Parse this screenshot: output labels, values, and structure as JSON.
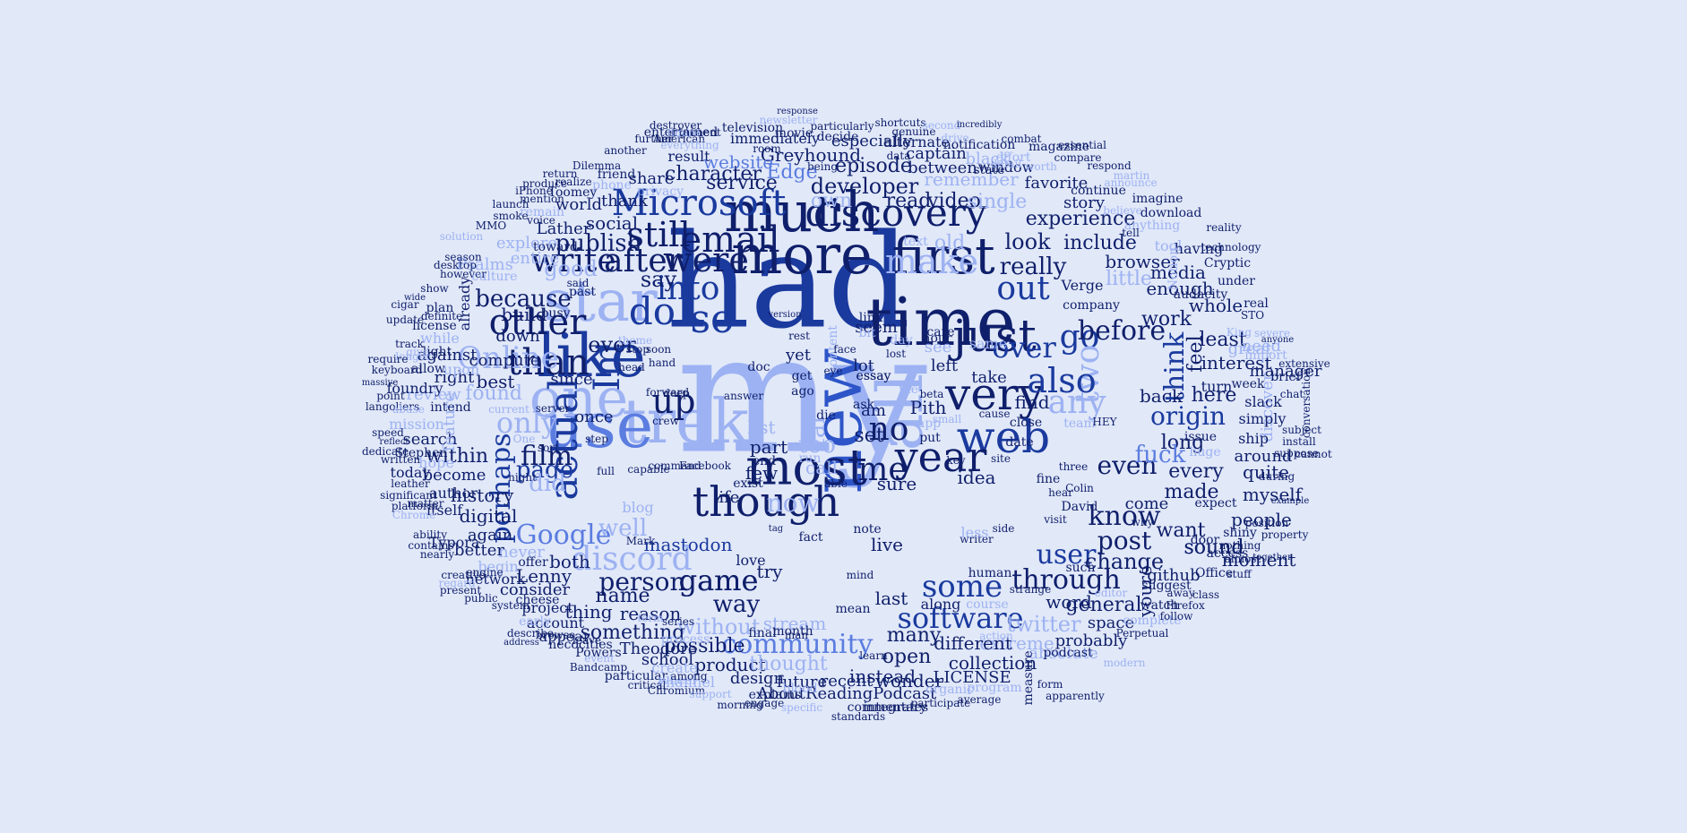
{
  "palette": [
    "#0f1f6b",
    "#1a3a9e",
    "#2d55c8",
    "#5b7de0",
    "#9db2f2",
    "#b8c8f5"
  ],
  "words": [
    {
      "text": "my"
    },
    {
      "text": "had"
    },
    {
      "text": "new"
    },
    {
      "text": "all"
    },
    {
      "text": "time"
    },
    {
      "text": "trek"
    },
    {
      "text": "use"
    },
    {
      "text": "much"
    },
    {
      "text": "more"
    },
    {
      "text": "like"
    },
    {
      "text": "one"
    },
    {
      "text": "star"
    },
    {
      "text": "first"
    },
    {
      "text": "most"
    },
    {
      "text": "very"
    },
    {
      "text": "web"
    },
    {
      "text": "just"
    },
    {
      "text": "year"
    },
    {
      "text": "though"
    },
    {
      "text": "discovery"
    },
    {
      "text": "Microsoft"
    },
    {
      "text": "email"
    },
    {
      "text": "still"
    },
    {
      "text": "were"
    },
    {
      "text": "make"
    },
    {
      "text": "do"
    },
    {
      "text": "so"
    },
    {
      "text": "than"
    },
    {
      "text": "other"
    },
    {
      "text": "Im"
    },
    {
      "text": "actual"
    },
    {
      "text": "up"
    },
    {
      "text": "into"
    },
    {
      "text": "after"
    },
    {
      "text": "write"
    },
    {
      "text": "out"
    },
    {
      "text": "over"
    },
    {
      "text": "go"
    },
    {
      "text": "two"
    },
    {
      "text": "also"
    },
    {
      "text": "any"
    },
    {
      "text": "me"
    },
    {
      "text": "no"
    },
    {
      "text": "some"
    },
    {
      "text": "software"
    },
    {
      "text": "game"
    },
    {
      "text": "discord"
    },
    {
      "text": "Online"
    },
    {
      "text": "film"
    },
    {
      "text": "only"
    },
    {
      "text": "Google"
    },
    {
      "text": "community"
    },
    {
      "text": "user"
    },
    {
      "text": "know"
    },
    {
      "text": "even"
    },
    {
      "text": "origin"
    },
    {
      "text": "before"
    },
    {
      "text": "think"
    },
    {
      "text": "through"
    },
    {
      "text": "post"
    },
    {
      "text": "now"
    },
    {
      "text": "far"
    },
    {
      "text": "too"
    },
    {
      "text": "way"
    },
    {
      "text": "person"
    },
    {
      "text": "page"
    },
    {
      "text": "did"
    },
    {
      "text": "well"
    },
    {
      "text": "perhaps"
    },
    {
      "text": "because"
    },
    {
      "text": "say"
    },
    {
      "text": "publish"
    },
    {
      "text": "good"
    },
    {
      "text": "ever"
    },
    {
      "text": "really"
    },
    {
      "text": "look"
    },
    {
      "text": "experience"
    },
    {
      "text": "developer"
    },
    {
      "text": "service"
    },
    {
      "text": "character"
    },
    {
      "text": "episode"
    },
    {
      "text": "Greyhound"
    },
    {
      "text": "Edge"
    },
    {
      "text": "website"
    },
    {
      "text": "own"
    },
    {
      "text": "old"
    },
    {
      "text": "read"
    },
    {
      "text": "video"
    },
    {
      "text": "single"
    },
    {
      "text": "remember"
    },
    {
      "text": "black"
    },
    {
      "text": "captain"
    },
    {
      "text": "between"
    },
    {
      "text": "favorite"
    },
    {
      "text": "story"
    },
    {
      "text": "include"
    },
    {
      "text": "browser"
    },
    {
      "text": "little"
    },
    {
      "text": "enough"
    },
    {
      "text": "media"
    },
    {
      "text": "whole"
    },
    {
      "text": "work"
    },
    {
      "text": "least"
    },
    {
      "text": "feel"
    },
    {
      "text": "interest"
    },
    {
      "text": "manager"
    },
    {
      "text": "here"
    },
    {
      "text": "back"
    },
    {
      "text": "long"
    },
    {
      "text": "every"
    },
    {
      "text": "made"
    },
    {
      "text": "myself"
    },
    {
      "text": "people"
    },
    {
      "text": "quite"
    },
    {
      "text": "around"
    },
    {
      "text": "fuck"
    },
    {
      "text": "discover"
    },
    {
      "text": "great"
    },
    {
      "text": "need"
    },
    {
      "text": "change"
    },
    {
      "text": "want"
    },
    {
      "text": "sound"
    },
    {
      "text": "moment"
    },
    {
      "text": "github"
    },
    {
      "text": "youre"
    },
    {
      "text": "general"
    },
    {
      "text": "word"
    },
    {
      "text": "space"
    },
    {
      "text": "twitter"
    },
    {
      "text": "probably"
    },
    {
      "text": "extreme"
    },
    {
      "text": "absolute"
    },
    {
      "text": "collection"
    },
    {
      "text": "different"
    },
    {
      "text": "many"
    },
    {
      "text": "open"
    },
    {
      "text": "instead"
    },
    {
      "text": "wonder"
    },
    {
      "text": "LICENSE"
    },
    {
      "text": "AboutReadingPodcast"
    },
    {
      "text": "recent"
    },
    {
      "text": "design"
    },
    {
      "text": "future"
    },
    {
      "text": "product"
    },
    {
      "text": "possible"
    },
    {
      "text": "thought"
    },
    {
      "text": "stream"
    },
    {
      "text": "without"
    },
    {
      "text": "something"
    },
    {
      "text": "reason"
    },
    {
      "text": "name"
    },
    {
      "text": "thing"
    },
    {
      "text": "consider"
    },
    {
      "text": "Lenny"
    },
    {
      "text": "both"
    },
    {
      "text": "never"
    },
    {
      "text": "mastodon"
    },
    {
      "text": "history"
    },
    {
      "text": "digital"
    },
    {
      "text": "within"
    },
    {
      "text": "become"
    },
    {
      "text": "search"
    },
    {
      "text": "found"
    },
    {
      "text": "review"
    },
    {
      "text": "right"
    },
    {
      "text": "best"
    },
    {
      "text": "compute"
    },
    {
      "text": "build"
    },
    {
      "text": "down"
    },
    {
      "text": "entire"
    },
    {
      "text": "explore"
    },
    {
      "text": "social"
    },
    {
      "text": "thank"
    },
    {
      "text": "share"
    },
    {
      "text": "phone"
    },
    {
      "text": "world"
    },
    {
      "text": "Lather"
    },
    {
      "text": "since"
    },
    {
      "text": "once"
    },
    {
      "text": "Pith"
    },
    {
      "text": "set"
    },
    {
      "text": "part"
    },
    {
      "text": "list"
    },
    {
      "text": "call"
    },
    {
      "text": "few"
    },
    {
      "text": "sure"
    },
    {
      "text": "live"
    },
    {
      "text": "last"
    },
    {
      "text": "try"
    },
    {
      "text": "idea"
    },
    {
      "text": "find"
    },
    {
      "text": "take"
    },
    {
      "text": "left"
    },
    {
      "text": "see"
    },
    {
      "text": "seem"
    },
    {
      "text": "yet"
    },
    {
      "text": "lot"
    },
    {
      "text": "am"
    },
    {
      "text": "life"
    },
    {
      "text": "love"
    },
    {
      "text": "Theodore"
    },
    {
      "text": "school"
    },
    {
      "text": "create"
    },
    {
      "text": "channel"
    },
    {
      "text": "Psalms"
    },
    {
      "text": "against"
    },
    {
      "text": "upon"
    },
    {
      "text": "while"
    },
    {
      "text": "already"
    },
    {
      "text": "feature"
    },
    {
      "text": "mission"
    },
    {
      "text": "author"
    },
    {
      "text": "hope"
    },
    {
      "text": "again"
    },
    {
      "text": "better"
    },
    {
      "text": "network"
    },
    {
      "text": "project"
    },
    {
      "text": "account"
    },
    {
      "text": "appear"
    },
    {
      "text": "begin"
    },
    {
      "text": "Typora"
    },
    {
      "text": "itself"
    },
    {
      "text": "today"
    },
    {
      "text": "foundry"
    },
    {
      "text": "allow"
    },
    {
      "text": "license"
    },
    {
      "text": "intend"
    },
    {
      "text": "blog"
    },
    {
      "text": "Stephen"
    },
    {
      "text": "Verge"
    },
    {
      "text": "audacity"
    },
    {
      "text": "slack"
    },
    {
      "text": "ship"
    },
    {
      "text": "simply"
    },
    {
      "text": "cannot"
    },
    {
      "text": "issue"
    },
    {
      "text": "huge"
    },
    {
      "text": "turn"
    },
    {
      "text": "import"
    },
    {
      "text": "David"
    },
    {
      "text": "Office"
    },
    {
      "text": "expect"
    },
    {
      "text": "shiny"
    },
    {
      "text": "door"
    },
    {
      "text": "suggest"
    },
    {
      "text": "watch"
    },
    {
      "text": "complete"
    },
    {
      "text": "podcast"
    },
    {
      "text": "Perpetual"
    },
    {
      "text": "explains"
    },
    {
      "text": "engage"
    },
    {
      "text": "commentary"
    },
    {
      "text": "integrates"
    },
    {
      "text": "participate"
    },
    {
      "text": "standards"
    },
    {
      "text": "month"
    },
    {
      "text": "particular"
    },
    {
      "text": "necocities"
    },
    {
      "text": "Powers"
    },
    {
      "text": "browse"
    },
    {
      "text": "Bandcamp"
    },
    {
      "text": "critical"
    },
    {
      "text": "Chromium"
    },
    {
      "text": "mean"
    },
    {
      "text": "human"
    },
    {
      "text": "course"
    },
    {
      "text": "program"
    },
    {
      "text": "organic"
    },
    {
      "text": "television"
    },
    {
      "text": "immediately"
    },
    {
      "text": "especially"
    },
    {
      "text": "alternate"
    },
    {
      "text": "notification"
    },
    {
      "text": "particularly"
    },
    {
      "text": "entertained"
    },
    {
      "text": "result"
    },
    {
      "text": "movie"
    },
    {
      "text": "destroyer"
    },
    {
      "text": "argument"
    },
    {
      "text": "American"
    },
    {
      "text": "Dilemma"
    },
    {
      "text": "Toomey"
    },
    {
      "text": "friend"
    },
    {
      "text": "produce"
    },
    {
      "text": "realize"
    },
    {
      "text": "mention"
    },
    {
      "text": "remain"
    },
    {
      "text": "toward"
    },
    {
      "text": "said"
    },
    {
      "text": "past"
    },
    {
      "text": "busy"
    },
    {
      "text": "smoke"
    },
    {
      "text": "launch"
    },
    {
      "text": "iPhone"
    },
    {
      "text": "return"
    },
    {
      "text": "window"
    },
    {
      "text": "continue"
    },
    {
      "text": "compare"
    },
    {
      "text": "magazine"
    },
    {
      "text": "effort"
    },
    {
      "text": "respond"
    },
    {
      "text": "martin"
    },
    {
      "text": "imagine"
    },
    {
      "text": "download"
    },
    {
      "text": "anything"
    },
    {
      "text": "tool"
    },
    {
      "text": "having"
    },
    {
      "text": "Cryptic"
    },
    {
      "text": "technology"
    },
    {
      "text": "company"
    },
    {
      "text": "Notion"
    },
    {
      "text": "under"
    },
    {
      "text": "real"
    },
    {
      "text": "week"
    },
    {
      "text": "brief"
    },
    {
      "text": "extensive"
    },
    {
      "text": "install"
    },
    {
      "text": "subject"
    },
    {
      "text": "suppose"
    },
    {
      "text": "conversation"
    },
    {
      "text": "access"
    },
    {
      "text": "stuff"
    },
    {
      "text": "class"
    },
    {
      "text": "away"
    },
    {
      "text": "follow"
    },
    {
      "text": "Firefox"
    },
    {
      "text": "essay"
    },
    {
      "text": "ask"
    },
    {
      "text": "close"
    },
    {
      "text": "date"
    },
    {
      "text": "team"
    },
    {
      "text": "three"
    },
    {
      "text": "HEY"
    },
    {
      "text": "position"
    },
    {
      "text": "property"
    },
    {
      "text": "nothing"
    },
    {
      "text": "app"
    },
    {
      "text": "put"
    },
    {
      "text": "care"
    },
    {
      "text": "hour"
    },
    {
      "text": "file"
    },
    {
      "text": "day"
    },
    {
      "text": "content"
    },
    {
      "text": "link"
    },
    {
      "text": "bit"
    },
    {
      "text": "run"
    },
    {
      "text": "get"
    },
    {
      "text": "ago"
    },
    {
      "text": "die"
    },
    {
      "text": "fact"
    },
    {
      "text": "note"
    },
    {
      "text": "end"
    },
    {
      "text": "exist"
    },
    {
      "text": "doc"
    },
    {
      "text": "Mark"
    },
    {
      "text": "full"
    },
    {
      "text": "One"
    },
    {
      "text": "server"
    },
    {
      "text": "current"
    },
    {
      "text": "sort"
    },
    {
      "text": "point"
    },
    {
      "text": "keyboard"
    },
    {
      "text": "massive"
    },
    {
      "text": "reflect"
    },
    {
      "text": "speed"
    },
    {
      "text": "written"
    },
    {
      "text": "nearly"
    },
    {
      "text": "contains"
    },
    {
      "text": "ability"
    },
    {
      "text": "platform"
    },
    {
      "text": "leather"
    },
    {
      "text": "significant"
    },
    {
      "text": "dedicate"
    },
    {
      "text": "matter"
    },
    {
      "text": "Chrome"
    },
    {
      "text": "desktop"
    },
    {
      "text": "cigar"
    },
    {
      "text": "update"
    },
    {
      "text": "wide"
    },
    {
      "text": "plan"
    },
    {
      "text": "definite"
    },
    {
      "text": "however"
    },
    {
      "text": "show"
    },
    {
      "text": "light"
    },
    {
      "text": "longer"
    },
    {
      "text": "give"
    },
    {
      "text": "track"
    },
    {
      "text": "require"
    },
    {
      "text": "langoliers"
    },
    {
      "text": "engine"
    },
    {
      "text": "system"
    },
    {
      "text": "cheese"
    },
    {
      "text": "public"
    },
    {
      "text": "present"
    },
    {
      "text": "creative"
    },
    {
      "text": "regard"
    },
    {
      "text": "early"
    },
    {
      "text": "describe"
    },
    {
      "text": "series"
    },
    {
      "text": "offer"
    },
    {
      "text": "leave"
    },
    {
      "text": "final"
    },
    {
      "text": "event"
    },
    {
      "text": "wheel"
    },
    {
      "text": "morning"
    },
    {
      "text": "average"
    },
    {
      "text": "specific"
    },
    {
      "text": "among"
    },
    {
      "text": "support"
    },
    {
      "text": "process"
    },
    {
      "text": "learn"
    },
    {
      "text": "measure"
    },
    {
      "text": "form"
    },
    {
      "text": "apparently"
    },
    {
      "text": "modern"
    },
    {
      "text": "response"
    },
    {
      "text": "genuine"
    },
    {
      "text": "shortcuts"
    },
    {
      "text": "second"
    },
    {
      "text": "state"
    },
    {
      "text": "combat"
    },
    {
      "text": "essential"
    },
    {
      "text": "incredibly"
    },
    {
      "text": "drive"
    },
    {
      "text": "data"
    },
    {
      "text": "being"
    },
    {
      "text": "decide"
    },
    {
      "text": "another"
    },
    {
      "text": "further"
    },
    {
      "text": "everything"
    },
    {
      "text": "newsletter"
    },
    {
      "text": "season"
    },
    {
      "text": "MMO"
    },
    {
      "text": "culture"
    },
    {
      "text": "privacy"
    },
    {
      "text": "abuse"
    },
    {
      "text": "King"
    },
    {
      "text": "during"
    },
    {
      "text": "anyone"
    },
    {
      "text": "chat"
    },
    {
      "text": "STO"
    },
    {
      "text": "voice"
    },
    {
      "text": "room"
    },
    {
      "text": "worth"
    },
    {
      "text": "believe"
    },
    {
      "text": "reality"
    },
    {
      "text": "detail"
    },
    {
      "text": "announce"
    },
    {
      "text": "solution"
    },
    {
      "text": "man"
    },
    {
      "text": "essay"
    },
    {
      "text": "answer"
    },
    {
      "text": "version"
    },
    {
      "text": "deep"
    },
    {
      "text": "stop"
    },
    {
      "text": "soon"
    },
    {
      "text": "head"
    },
    {
      "text": "step"
    },
    {
      "text": "capable"
    },
    {
      "text": "command"
    },
    {
      "text": "Facebook"
    },
    {
      "text": "face"
    },
    {
      "text": "eye"
    },
    {
      "text": "able"
    },
    {
      "text": "address"
    },
    {
      "text": "night"
    },
    {
      "text": "crew"
    },
    {
      "text": "theme"
    },
    {
      "text": "tag"
    },
    {
      "text": "forward"
    },
    {
      "text": "term"
    },
    {
      "text": "site"
    },
    {
      "text": "cause"
    },
    {
      "text": "key"
    },
    {
      "text": "beta"
    },
    {
      "text": "small"
    },
    {
      "text": "almost"
    },
    {
      "text": "together"
    },
    {
      "text": "example"
    },
    {
      "text": "text"
    },
    {
      "text": "tell"
    },
    {
      "text": "lost"
    },
    {
      "text": "blood"
    },
    {
      "text": "action"
    },
    {
      "text": "mind"
    },
    {
      "text": "strange"
    },
    {
      "text": "writer"
    },
    {
      "text": "rest"
    },
    {
      "text": "figure"
    },
    {
      "text": "hand"
    },
    {
      "text": "side"
    },
    {
      "text": "editor"
    },
    {
      "text": "severe"
    },
    {
      "text": "game"
    },
    {
      "text": "visit"
    },
    {
      "text": "along"
    },
    {
      "text": "less"
    },
    {
      "text": "same"
    },
    {
      "text": "fine"
    },
    {
      "text": "why"
    },
    {
      "text": "come"
    },
    {
      "text": "Colin"
    },
    {
      "text": "hear"
    },
    {
      "text": "such"
    },
    {
      "text": "sound"
    }
  ]
}
